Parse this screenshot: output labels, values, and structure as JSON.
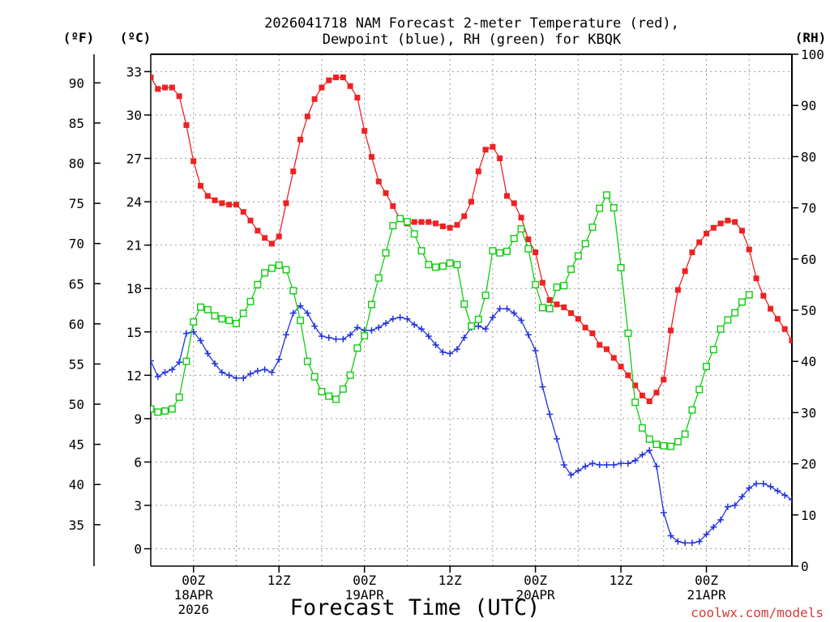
{
  "chart_data": {
    "type": "line",
    "title_line1": "2026041718 NAM Forecast 2-meter Temperature (red),",
    "title_line2": "Dewpoint (blue), RH (green) for KBQK",
    "xlabel": "Forecast Time (UTC)",
    "footer": "coolwx.com/models",
    "unit_labels": {
      "fahrenheit": "(ºF)",
      "celsius": "(ºC)",
      "rh": "(RH)"
    },
    "x_range_hours": [
      -6,
      84
    ],
    "celsius_range": [
      -1.2,
      34.2
    ],
    "rh_range": [
      0,
      100
    ],
    "fahrenheit_ticks": [
      35,
      40,
      45,
      50,
      55,
      60,
      65,
      70,
      75,
      80,
      85,
      90
    ],
    "celsius_ticks": [
      0,
      3,
      6,
      9,
      12,
      15,
      18,
      21,
      24,
      27,
      30,
      33
    ],
    "rh_ticks": [
      0,
      10,
      20,
      30,
      40,
      50,
      60,
      70,
      80,
      90,
      100
    ],
    "x_ticks": [
      {
        "hour": 0,
        "lines": [
          "00Z",
          "18APR",
          "2026"
        ]
      },
      {
        "hour": 12,
        "lines": [
          "12Z"
        ]
      },
      {
        "hour": 24,
        "lines": [
          "00Z",
          "19APR"
        ]
      },
      {
        "hour": 36,
        "lines": [
          "12Z"
        ]
      },
      {
        "hour": 48,
        "lines": [
          "00Z",
          "20APR"
        ]
      },
      {
        "hour": 60,
        "lines": [
          "12Z"
        ]
      },
      {
        "hour": 72,
        "lines": [
          "00Z",
          "21APR"
        ]
      }
    ],
    "grid": true,
    "series": [
      {
        "name": "Temperature",
        "unit": "C",
        "color": "#ee2222",
        "marker": "filled-square",
        "points": [
          [
            -6,
            32.6
          ],
          [
            -5,
            31.8
          ],
          [
            -4,
            31.9
          ],
          [
            -3,
            31.9
          ],
          [
            -2,
            31.3
          ],
          [
            -1,
            29.3
          ],
          [
            0,
            26.8
          ],
          [
            1,
            25.1
          ],
          [
            2,
            24.4
          ],
          [
            3,
            24.1
          ],
          [
            4,
            23.9
          ],
          [
            5,
            23.8
          ],
          [
            6,
            23.8
          ],
          [
            7,
            23.3
          ],
          [
            8,
            22.7
          ],
          [
            9,
            22.0
          ],
          [
            10,
            21.5
          ],
          [
            11,
            21.1
          ],
          [
            12,
            21.6
          ],
          [
            13,
            23.9
          ],
          [
            14,
            26.1
          ],
          [
            15,
            28.3
          ],
          [
            16,
            29.9
          ],
          [
            17,
            31.1
          ],
          [
            18,
            31.9
          ],
          [
            19,
            32.4
          ],
          [
            20,
            32.6
          ],
          [
            21,
            32.6
          ],
          [
            22,
            32.0
          ],
          [
            23,
            31.2
          ],
          [
            24,
            28.9
          ],
          [
            25,
            27.1
          ],
          [
            26,
            25.4
          ],
          [
            27,
            24.6
          ],
          [
            28,
            23.7
          ],
          [
            29,
            22.8
          ],
          [
            30,
            22.5
          ],
          [
            31,
            22.6
          ],
          [
            32,
            22.6
          ],
          [
            33,
            22.6
          ],
          [
            34,
            22.5
          ],
          [
            35,
            22.3
          ],
          [
            36,
            22.2
          ],
          [
            37,
            22.4
          ],
          [
            38,
            23.0
          ],
          [
            39,
            24.0
          ],
          [
            40,
            26.1
          ],
          [
            41,
            27.6
          ],
          [
            42,
            27.8
          ],
          [
            43,
            27.0
          ],
          [
            44,
            24.4
          ],
          [
            45,
            23.9
          ],
          [
            46,
            22.9
          ],
          [
            47,
            21.4
          ],
          [
            48,
            20.5
          ],
          [
            49,
            18.4
          ],
          [
            50,
            17.2
          ],
          [
            51,
            16.9
          ],
          [
            52,
            16.7
          ],
          [
            53,
            16.3
          ],
          [
            54,
            15.9
          ],
          [
            55,
            15.3
          ],
          [
            56,
            14.9
          ],
          [
            57,
            14.1
          ],
          [
            58,
            13.8
          ],
          [
            59,
            13.2
          ],
          [
            60,
            12.6
          ],
          [
            61,
            12.0
          ],
          [
            62,
            11.3
          ],
          [
            63,
            10.6
          ],
          [
            64,
            10.2
          ],
          [
            65,
            10.8
          ],
          [
            66,
            11.7
          ],
          [
            67,
            15.1
          ],
          [
            68,
            17.9
          ],
          [
            69,
            19.2
          ],
          [
            70,
            20.5
          ],
          [
            71,
            21.2
          ],
          [
            72,
            21.8
          ],
          [
            73,
            22.2
          ],
          [
            74,
            22.5
          ],
          [
            75,
            22.7
          ],
          [
            76,
            22.6
          ],
          [
            77,
            22.0
          ],
          [
            78,
            20.7
          ],
          [
            79,
            18.7
          ],
          [
            80,
            17.5
          ],
          [
            81,
            16.6
          ],
          [
            82,
            15.9
          ],
          [
            83,
            15.2
          ],
          [
            84,
            14.4
          ],
          [
            85,
            13.9
          ]
        ]
      },
      {
        "name": "Dewpoint",
        "unit": "C",
        "color": "#2233dd",
        "marker": "plus",
        "points": [
          [
            -6,
            13.0
          ],
          [
            -5,
            11.9
          ],
          [
            -4,
            12.2
          ],
          [
            -3,
            12.4
          ],
          [
            -2,
            12.9
          ],
          [
            -1,
            14.9
          ],
          [
            0,
            15.0
          ],
          [
            1,
            14.4
          ],
          [
            2,
            13.5
          ],
          [
            3,
            12.8
          ],
          [
            4,
            12.2
          ],
          [
            5,
            12.0
          ],
          [
            6,
            11.8
          ],
          [
            7,
            11.8
          ],
          [
            8,
            12.1
          ],
          [
            9,
            12.3
          ],
          [
            10,
            12.4
          ],
          [
            11,
            12.2
          ],
          [
            12,
            13.1
          ],
          [
            13,
            14.8
          ],
          [
            14,
            16.3
          ],
          [
            15,
            16.8
          ],
          [
            16,
            16.3
          ],
          [
            17,
            15.4
          ],
          [
            18,
            14.7
          ],
          [
            19,
            14.6
          ],
          [
            20,
            14.5
          ],
          [
            21,
            14.5
          ],
          [
            22,
            14.8
          ],
          [
            23,
            15.3
          ],
          [
            24,
            15.1
          ],
          [
            25,
            15.1
          ],
          [
            26,
            15.3
          ],
          [
            27,
            15.6
          ],
          [
            28,
            15.9
          ],
          [
            29,
            16.0
          ],
          [
            30,
            15.9
          ],
          [
            31,
            15.5
          ],
          [
            32,
            15.2
          ],
          [
            33,
            14.7
          ],
          [
            34,
            14.1
          ],
          [
            35,
            13.6
          ],
          [
            36,
            13.5
          ],
          [
            37,
            13.8
          ],
          [
            38,
            14.6
          ],
          [
            39,
            15.3
          ],
          [
            40,
            15.4
          ],
          [
            41,
            15.2
          ],
          [
            42,
            16.0
          ],
          [
            43,
            16.6
          ],
          [
            44,
            16.6
          ],
          [
            45,
            16.3
          ],
          [
            46,
            15.8
          ],
          [
            47,
            14.8
          ],
          [
            48,
            13.7
          ],
          [
            49,
            11.2
          ],
          [
            50,
            9.3
          ],
          [
            51,
            7.6
          ],
          [
            52,
            5.8
          ],
          [
            53,
            5.1
          ],
          [
            54,
            5.4
          ],
          [
            55,
            5.7
          ],
          [
            56,
            5.9
          ],
          [
            57,
            5.8
          ],
          [
            58,
            5.8
          ],
          [
            59,
            5.8
          ],
          [
            60,
            5.9
          ],
          [
            61,
            5.9
          ],
          [
            62,
            6.1
          ],
          [
            63,
            6.5
          ],
          [
            64,
            6.8
          ],
          [
            65,
            5.7
          ],
          [
            66,
            2.5
          ],
          [
            67,
            0.9
          ],
          [
            68,
            0.5
          ],
          [
            69,
            0.4
          ],
          [
            70,
            0.4
          ],
          [
            71,
            0.5
          ],
          [
            72,
            1.0
          ],
          [
            73,
            1.5
          ],
          [
            74,
            2.0
          ],
          [
            75,
            2.9
          ],
          [
            76,
            3.0
          ],
          [
            77,
            3.6
          ],
          [
            78,
            4.2
          ],
          [
            79,
            4.5
          ],
          [
            80,
            4.5
          ],
          [
            81,
            4.3
          ],
          [
            82,
            4.0
          ],
          [
            83,
            3.7
          ],
          [
            84,
            3.4
          ],
          [
            85,
            3.2
          ]
        ]
      },
      {
        "name": "RH",
        "unit": "%",
        "color": "#11cc11",
        "marker": "open-square",
        "points": [
          [
            -6,
            30.7
          ],
          [
            -5,
            30.1
          ],
          [
            -4,
            30.3
          ],
          [
            -3,
            30.7
          ],
          [
            -2,
            33.0
          ],
          [
            -1,
            40.0
          ],
          [
            0,
            47.7
          ],
          [
            1,
            50.6
          ],
          [
            2,
            50.1
          ],
          [
            3,
            48.9
          ],
          [
            4,
            48.3
          ],
          [
            5,
            48.0
          ],
          [
            6,
            47.4
          ],
          [
            7,
            49.4
          ],
          [
            8,
            51.7
          ],
          [
            9,
            55.0
          ],
          [
            10,
            57.3
          ],
          [
            11,
            58.2
          ],
          [
            12,
            58.8
          ],
          [
            13,
            57.9
          ],
          [
            14,
            53.8
          ],
          [
            15,
            48.0
          ],
          [
            16,
            40.0
          ],
          [
            17,
            37.0
          ],
          [
            18,
            34.1
          ],
          [
            19,
            33.2
          ],
          [
            20,
            32.6
          ],
          [
            21,
            34.6
          ],
          [
            22,
            37.3
          ],
          [
            23,
            42.6
          ],
          [
            24,
            45.0
          ],
          [
            25,
            51.1
          ],
          [
            26,
            56.3
          ],
          [
            27,
            61.2
          ],
          [
            28,
            66.5
          ],
          [
            29,
            67.9
          ],
          [
            30,
            67.3
          ],
          [
            31,
            64.9
          ],
          [
            32,
            61.6
          ],
          [
            33,
            58.9
          ],
          [
            34,
            58.4
          ],
          [
            35,
            58.6
          ],
          [
            36,
            59.2
          ],
          [
            37,
            58.9
          ],
          [
            38,
            51.2
          ],
          [
            39,
            46.9
          ],
          [
            40,
            48.2
          ],
          [
            41,
            52.9
          ],
          [
            42,
            61.6
          ],
          [
            43,
            61.2
          ],
          [
            44,
            61.5
          ],
          [
            45,
            64.0
          ],
          [
            46,
            65.9
          ],
          [
            47,
            62.0
          ],
          [
            48,
            55.0
          ],
          [
            49,
            50.5
          ],
          [
            50,
            50.3
          ],
          [
            51,
            54.5
          ],
          [
            52,
            54.8
          ],
          [
            53,
            58.0
          ],
          [
            54,
            60.6
          ],
          [
            55,
            63.0
          ],
          [
            56,
            66.2
          ],
          [
            57,
            69.9
          ],
          [
            58,
            72.5
          ],
          [
            59,
            70.0
          ],
          [
            60,
            58.3
          ],
          [
            61,
            45.5
          ],
          [
            62,
            32.0
          ],
          [
            63,
            27.0
          ],
          [
            64,
            24.8
          ],
          [
            65,
            23.8
          ],
          [
            66,
            23.5
          ],
          [
            67,
            23.4
          ],
          [
            68,
            24.3
          ],
          [
            69,
            25.8
          ],
          [
            70,
            30.5
          ],
          [
            71,
            34.5
          ],
          [
            72,
            39.0
          ],
          [
            73,
            42.3
          ],
          [
            74,
            46.3
          ],
          [
            75,
            48.1
          ],
          [
            76,
            49.5
          ],
          [
            77,
            51.6
          ],
          [
            78,
            53.0
          ]
        ]
      }
    ]
  }
}
